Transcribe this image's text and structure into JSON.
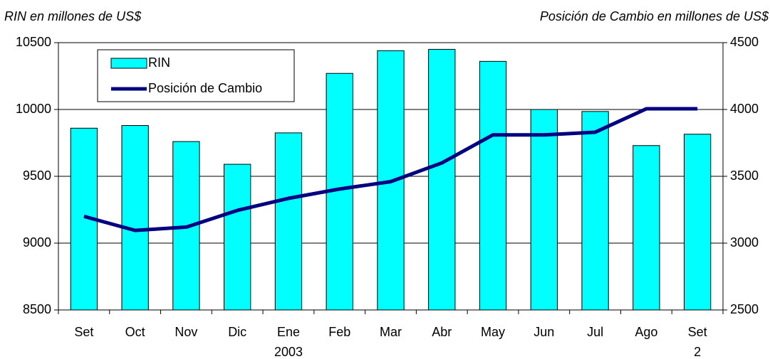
{
  "chart_data": {
    "type": "bar_line",
    "y_axis_title": "RIN en millones de US$",
    "y2_axis_title": "Posición de Cambio en millones de US$",
    "categories": [
      "Set",
      "Oct",
      "Nov",
      "Dic",
      "Ene",
      "Feb",
      "Mar",
      "Abr",
      "May",
      "Jun",
      "Jul",
      "Ago",
      "Set"
    ],
    "x_group_labels": [
      null,
      null,
      null,
      null,
      "2003",
      null,
      null,
      null,
      null,
      null,
      null,
      null,
      "2"
    ],
    "series": [
      {
        "name": "RIN",
        "type": "bar",
        "color": "#00ffff",
        "values": [
          9860,
          9880,
          9760,
          9590,
          9825,
          10270,
          10440,
          10450,
          10360,
          10000,
          9985,
          9730,
          9815
        ]
      },
      {
        "name": "Posición de Cambio",
        "type": "line",
        "axis": "y2",
        "color": "#000080",
        "values": [
          3200,
          3095,
          3120,
          3245,
          3335,
          3405,
          3460,
          3600,
          3810,
          3810,
          3830,
          4005,
          4005
        ]
      }
    ],
    "ylim": [
      8500,
      10500
    ],
    "yticks": [
      8500,
      9000,
      9500,
      10000,
      10500
    ],
    "y2lim": [
      2500,
      4500
    ],
    "y2ticks": [
      2500,
      3000,
      3500,
      4000,
      4500
    ],
    "grid": true,
    "legend": "upper left"
  }
}
